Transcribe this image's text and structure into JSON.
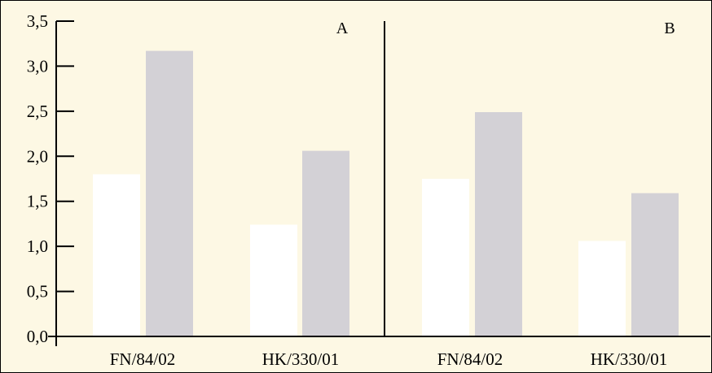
{
  "chart_data": {
    "type": "bar",
    "ylim": [
      0,
      3.5
    ],
    "yticks": [
      "0,0",
      "0,5",
      "1,0",
      "1,5",
      "2,0",
      "2,5",
      "3,0",
      "3,5"
    ],
    "ytick_values": [
      0,
      0.5,
      1.0,
      1.5,
      2.0,
      2.5,
      3.0,
      3.5
    ],
    "grid": false,
    "legend": "none",
    "series_colors": [
      "#ffffff",
      "#d3d1d6"
    ],
    "panels": [
      {
        "label": "A",
        "categories": [
          "FN/84/02",
          "HK/330/01"
        ],
        "series": [
          {
            "values": [
              1.8,
              1.24
            ]
          },
          {
            "values": [
              3.17,
              2.06
            ]
          }
        ]
      },
      {
        "label": "B",
        "categories": [
          "FN/84/02",
          "HK/330/01"
        ],
        "series": [
          {
            "values": [
              1.75,
              1.06
            ]
          },
          {
            "values": [
              2.49,
              1.59
            ]
          }
        ]
      }
    ]
  }
}
